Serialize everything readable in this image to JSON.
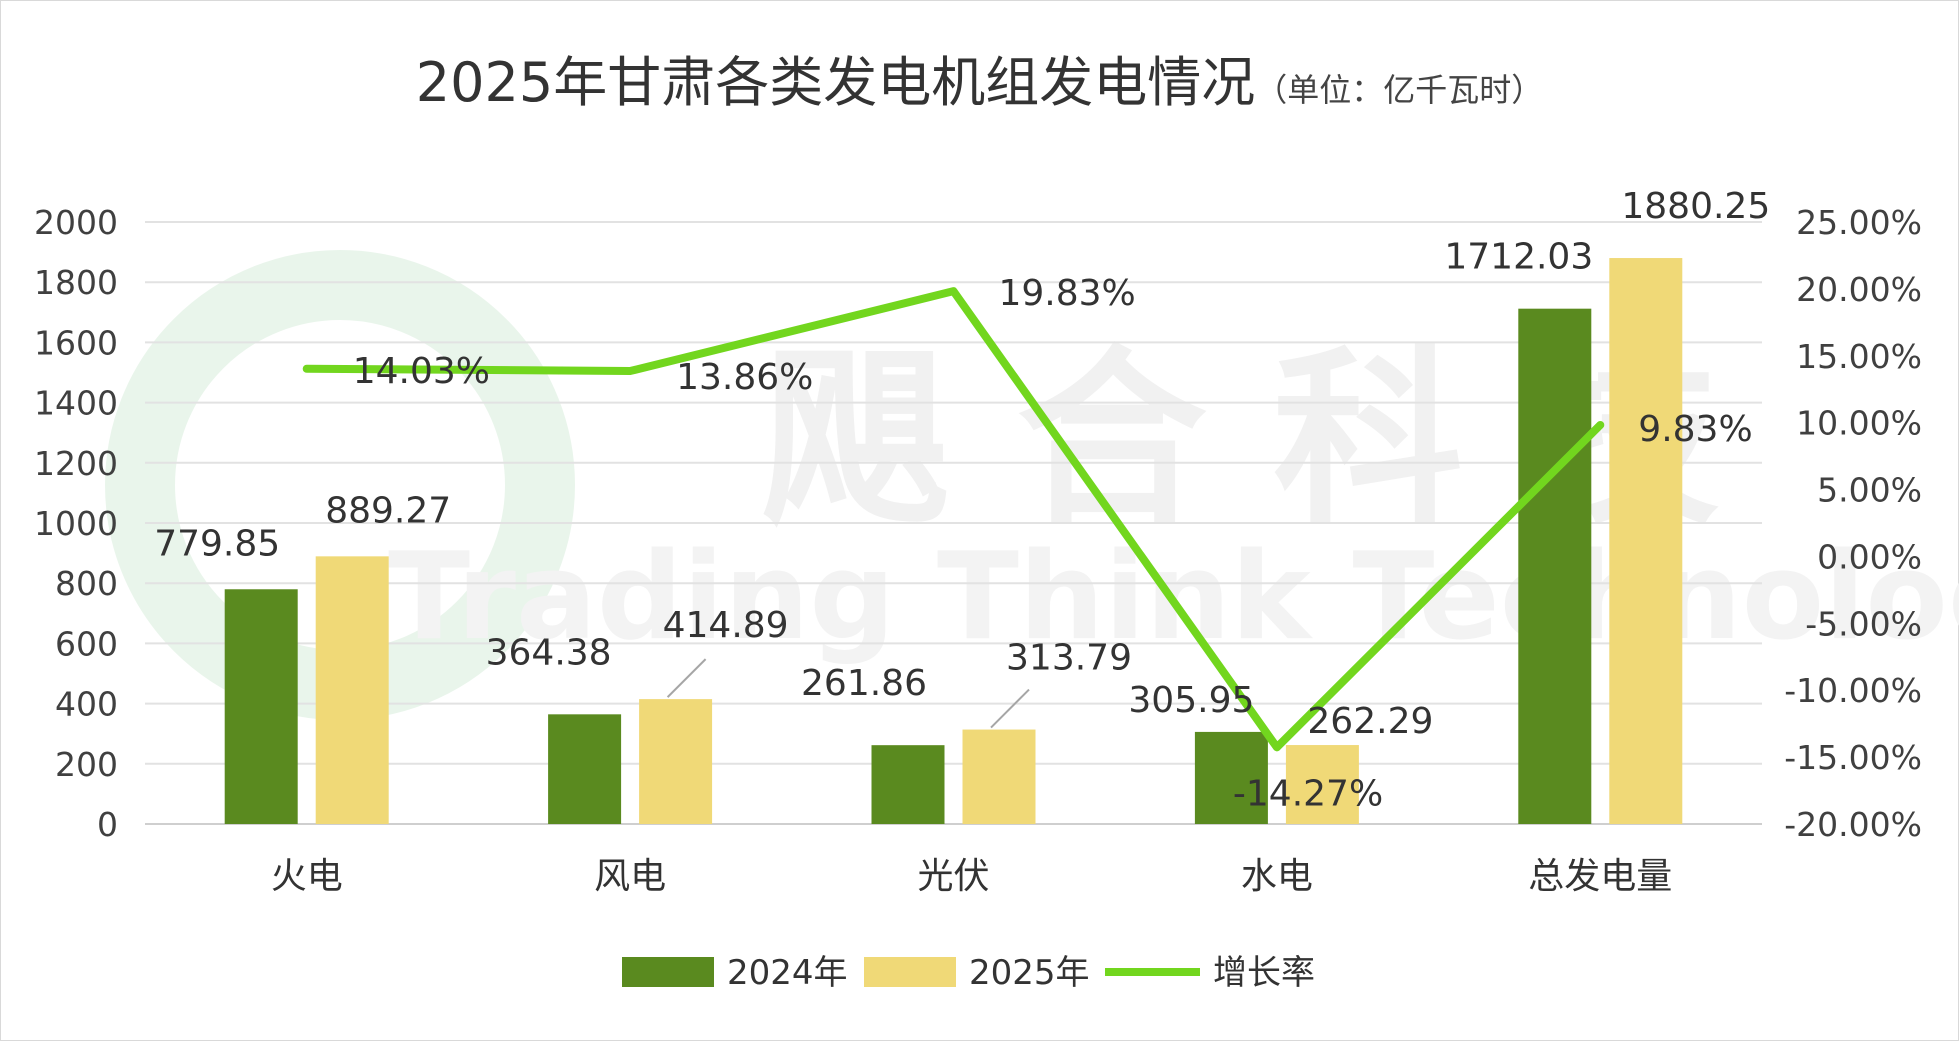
{
  "chart_data": {
    "type": "bar",
    "title": "2025年甘肃各类发电机组发电情况",
    "unit": "（单位：亿千瓦时）",
    "categories": [
      "火电",
      "风电",
      "光伏",
      "水电",
      "总发电量"
    ],
    "series": [
      {
        "name": "2024年",
        "type": "bar",
        "color": "#5a8a1f",
        "axis": "left",
        "values": [
          779.85,
          364.38,
          261.86,
          305.95,
          1712.03
        ],
        "labels": [
          "779.85",
          "364.38",
          "261.86",
          "305.95",
          "1712.03"
        ]
      },
      {
        "name": "2025年",
        "type": "bar",
        "color": "#f0d977",
        "axis": "left",
        "values": [
          889.27,
          414.89,
          313.79,
          262.29,
          1880.25
        ],
        "labels": [
          "889.27",
          "414.89",
          "313.79",
          "262.29",
          "1880.25"
        ]
      },
      {
        "name": "增长率",
        "type": "line",
        "color": "#72d61e",
        "axis": "right",
        "values": [
          14.03,
          13.86,
          19.83,
          -14.27,
          9.83
        ],
        "labels": [
          "14.03%",
          "13.86%",
          "19.83%",
          "-14.27%",
          "9.83%"
        ]
      }
    ],
    "y_left": {
      "min": 0,
      "max": 2000,
      "step": 200,
      "ticks": [
        "0",
        "200",
        "400",
        "600",
        "800",
        "1000",
        "1200",
        "1400",
        "1600",
        "1800",
        "2000"
      ]
    },
    "y_right": {
      "min": -20,
      "max": 25,
      "step": 5,
      "ticks": [
        "-20.00%",
        "-15.00%",
        "-10.00%",
        "-5.00%",
        "0.00%",
        "5.00%",
        "10.00%",
        "15.00%",
        "20.00%",
        "25.00%"
      ]
    },
    "grid": true,
    "legend_position": "bottom"
  },
  "watermark": {
    "text_cn": "飓 合 科 技",
    "text_en": "Trading Think Technology"
  }
}
